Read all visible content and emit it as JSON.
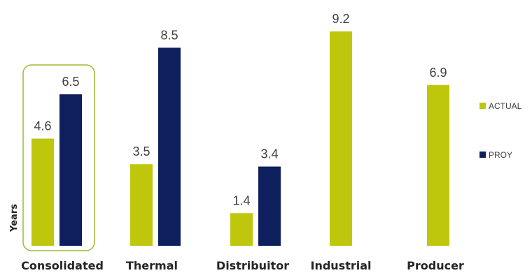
{
  "chart_data": {
    "type": "bar",
    "categories": [
      "Consolidated",
      "Thermal",
      "Distribuitor",
      "Industrial",
      "Producer"
    ],
    "series": [
      {
        "name": "ACTUAL",
        "color": "#bfc70c",
        "values": [
          4.6,
          3.5,
          1.4,
          9.2,
          6.9
        ]
      },
      {
        "name": "PROY",
        "color": "#0d1f5c",
        "values": [
          6.5,
          8.5,
          3.4,
          null,
          null
        ]
      }
    ],
    "ylabel": "Years",
    "ylim": [
      0,
      9.2
    ],
    "legend_position": "right",
    "highlight_category": "Consolidated",
    "highlight_color": "#9cbb34",
    "grid": false
  }
}
